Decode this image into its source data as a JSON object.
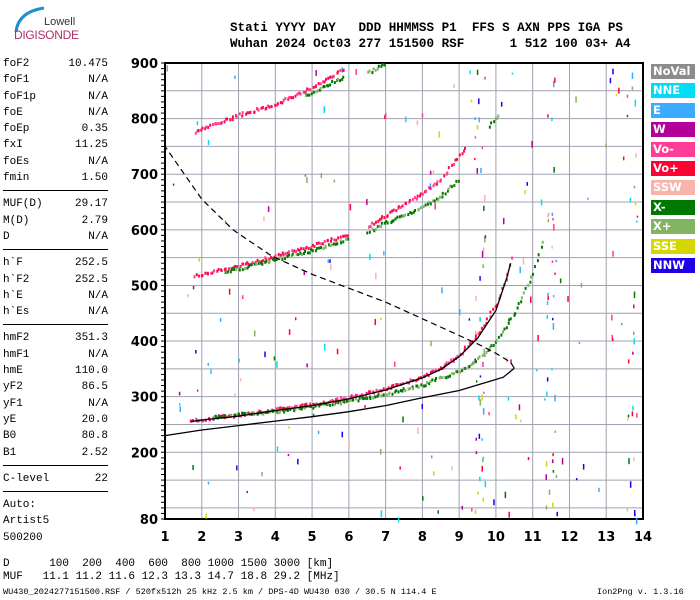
{
  "logo": {
    "line1": "Lowell",
    "line2": "DIGISONDE"
  },
  "header": {
    "labels": "Stati YYYY DAY   DDD HHMMSS P1  FFS S AXN PPS IGA PS",
    "values": "Wuhan 2024 Oct03 277 151500 RSF      1 512 100 03+ A4"
  },
  "params": {
    "group1": [
      {
        "name": "foF2",
        "value": "10.475"
      },
      {
        "name": "foF1",
        "value": "N/A"
      },
      {
        "name": "foF1p",
        "value": "N/A"
      },
      {
        "name": "foE",
        "value": "N/A"
      },
      {
        "name": "foEp",
        "value": "0.35"
      },
      {
        "name": "fxI",
        "value": "11.25"
      },
      {
        "name": "foEs",
        "value": "N/A"
      },
      {
        "name": "fmin",
        "value": "1.50"
      }
    ],
    "group2": [
      {
        "name": "MUF(D)",
        "value": "29.17"
      },
      {
        "name": "M(D)",
        "value": "2.79"
      },
      {
        "name": "D",
        "value": "N/A"
      }
    ],
    "group3": [
      {
        "name": "h`F",
        "value": "252.5"
      },
      {
        "name": "h`F2",
        "value": "252.5"
      },
      {
        "name": "h`E",
        "value": "N/A"
      },
      {
        "name": "h`Es",
        "value": "N/A"
      }
    ],
    "group4": [
      {
        "name": "hmF2",
        "value": "351.3"
      },
      {
        "name": "hmF1",
        "value": "N/A"
      },
      {
        "name": "hmE",
        "value": "110.0"
      },
      {
        "name": "yF2",
        "value": "86.5"
      },
      {
        "name": "yF1",
        "value": "N/A"
      },
      {
        "name": "yE",
        "value": "20.0"
      },
      {
        "name": "B0",
        "value": "80.8"
      },
      {
        "name": "B1",
        "value": "2.52"
      }
    ],
    "group5": [
      {
        "name": "C-level",
        "value": "22"
      }
    ],
    "auto": [
      "Auto:",
      "Artist5",
      "500200"
    ]
  },
  "legend": [
    {
      "label": "NoVal",
      "color": "#8c8c8c"
    },
    {
      "label": "NNE",
      "color": "#00dcf5"
    },
    {
      "label": "E",
      "color": "#3caaff"
    },
    {
      "label": "W",
      "color": "#b4009a"
    },
    {
      "label": "Vo-",
      "color": "#ff3c96"
    },
    {
      "label": "Vo+",
      "color": "#ff0032"
    },
    {
      "label": "SSW",
      "color": "#f8b4aa"
    },
    {
      "label": "X-",
      "color": "#007800"
    },
    {
      "label": "X+",
      "color": "#82b464"
    },
    {
      "label": "SSE",
      "color": "#d7d700"
    },
    {
      "label": "NNW",
      "color": "#1e00e6"
    }
  ],
  "bottom": {
    "d_row": "D      100  200  400  600  800 1000 1500 3000 [km]",
    "muf_row": "MUF   11.1 11.2 11.6 12.3 13.3 14.7 18.8 29.2 [MHz]",
    "footer": "WU430_2024277151500.RSF / 520fx512h 25 kHz 2.5 km / DPS-4D WU430 030 / 30.5 N 114.4 E",
    "version": "Ion2Png v. 1.3.16"
  },
  "chart_data": {
    "type": "scatter",
    "xlim": [
      1,
      14
    ],
    "ylim": [
      80,
      900
    ],
    "xticks": [
      "1",
      "2",
      "3",
      "4",
      "5",
      "6",
      "7",
      "8",
      "9",
      "10",
      "11",
      "12",
      "13",
      "14"
    ],
    "yticks": [
      "80",
      "200",
      "300",
      "400",
      "500",
      "600",
      "700",
      "800",
      "900"
    ],
    "grid": true,
    "series": [
      {
        "kind": "o-trace",
        "color": "#ff0a50",
        "points": [
          [
            1.7,
            255
          ],
          [
            2,
            258
          ],
          [
            3,
            266
          ],
          [
            4,
            276
          ],
          [
            5,
            285
          ],
          [
            6,
            297
          ],
          [
            7,
            313
          ],
          [
            8,
            335
          ],
          [
            8.5,
            350
          ],
          [
            9,
            375
          ],
          [
            9.5,
            410
          ],
          [
            10,
            465
          ],
          [
            10.3,
            520
          ],
          [
            10.45,
            560
          ]
        ]
      },
      {
        "kind": "x-trace",
        "color": "#007800",
        "points": [
          [
            2.3,
            263
          ],
          [
            3,
            267
          ],
          [
            4,
            272
          ],
          [
            5,
            281
          ],
          [
            6,
            291
          ],
          [
            7,
            303
          ],
          [
            8,
            320
          ],
          [
            9,
            345
          ],
          [
            9.5,
            365
          ],
          [
            10,
            400
          ],
          [
            10.5,
            450
          ],
          [
            11,
            520
          ],
          [
            11.3,
            590
          ]
        ]
      },
      {
        "kind": "o-trace",
        "color": "#ff0a50",
        "points": [
          [
            1.8,
            515
          ],
          [
            3,
            535
          ],
          [
            4,
            552
          ],
          [
            5,
            570
          ],
          [
            6,
            590
          ]
        ]
      },
      {
        "kind": "x-trace",
        "color": "#007800",
        "points": [
          [
            2.6,
            522
          ],
          [
            4,
            545
          ],
          [
            5,
            562
          ],
          [
            6,
            582
          ]
        ]
      },
      {
        "kind": "o-trace",
        "color": "#ff0a50",
        "points": [
          [
            6.5,
            605
          ],
          [
            7,
            625
          ],
          [
            7.5,
            645
          ],
          [
            8,
            665
          ],
          [
            8.5,
            690
          ],
          [
            9.2,
            750
          ]
        ]
      },
      {
        "kind": "x-trace",
        "color": "#007800",
        "points": [
          [
            6.5,
            595
          ],
          [
            7,
            612
          ],
          [
            8,
            640
          ],
          [
            8.5,
            660
          ],
          [
            9,
            690
          ]
        ]
      },
      {
        "kind": "o-trace",
        "color": "#ff0a50",
        "points": [
          [
            1.8,
            775
          ],
          [
            3,
            805
          ],
          [
            4,
            825
          ],
          [
            5,
            855
          ],
          [
            5.9,
            890
          ]
        ]
      },
      {
        "kind": "x-trace",
        "color": "#007800",
        "points": [
          [
            4.8,
            840
          ],
          [
            5.9,
            875
          ]
        ]
      },
      {
        "kind": "x-trace",
        "color": "#007800",
        "points": [
          [
            6.5,
            880
          ],
          [
            7,
            900
          ]
        ]
      },
      {
        "kind": "x-trace",
        "color": "#007800",
        "points": [
          [
            9.8,
            785
          ],
          [
            10.1,
            810
          ]
        ]
      }
    ],
    "model_trace": [
      [
        1.7,
        255
      ],
      [
        2,
        258
      ],
      [
        3,
        265
      ],
      [
        4,
        275
      ],
      [
        5,
        284
      ],
      [
        6,
        296
      ],
      [
        7,
        312
      ],
      [
        8,
        334
      ],
      [
        8.5,
        349
      ],
      [
        9,
        372
      ],
      [
        9.5,
        405
      ],
      [
        10,
        455
      ],
      [
        10.3,
        515
      ],
      [
        10.4,
        540
      ]
    ],
    "profile": [
      [
        1,
        230
      ],
      [
        2,
        240
      ],
      [
        3,
        248
      ],
      [
        4,
        256
      ],
      [
        5,
        264
      ],
      [
        6,
        273
      ],
      [
        7,
        284
      ],
      [
        8,
        298
      ],
      [
        9,
        311
      ],
      [
        9.7,
        325
      ],
      [
        10.2,
        335
      ],
      [
        10.5,
        351
      ]
    ],
    "profile_dashed": [
      [
        10.5,
        351
      ],
      [
        10.4,
        362
      ],
      [
        10,
        378
      ],
      [
        9.5,
        395
      ],
      [
        9,
        410
      ],
      [
        8,
        440
      ],
      [
        7,
        470
      ],
      [
        6,
        495
      ],
      [
        5,
        520
      ],
      [
        3.9,
        553
      ],
      [
        2.85,
        600
      ],
      [
        2,
        655
      ],
      [
        1,
        750
      ]
    ]
  }
}
